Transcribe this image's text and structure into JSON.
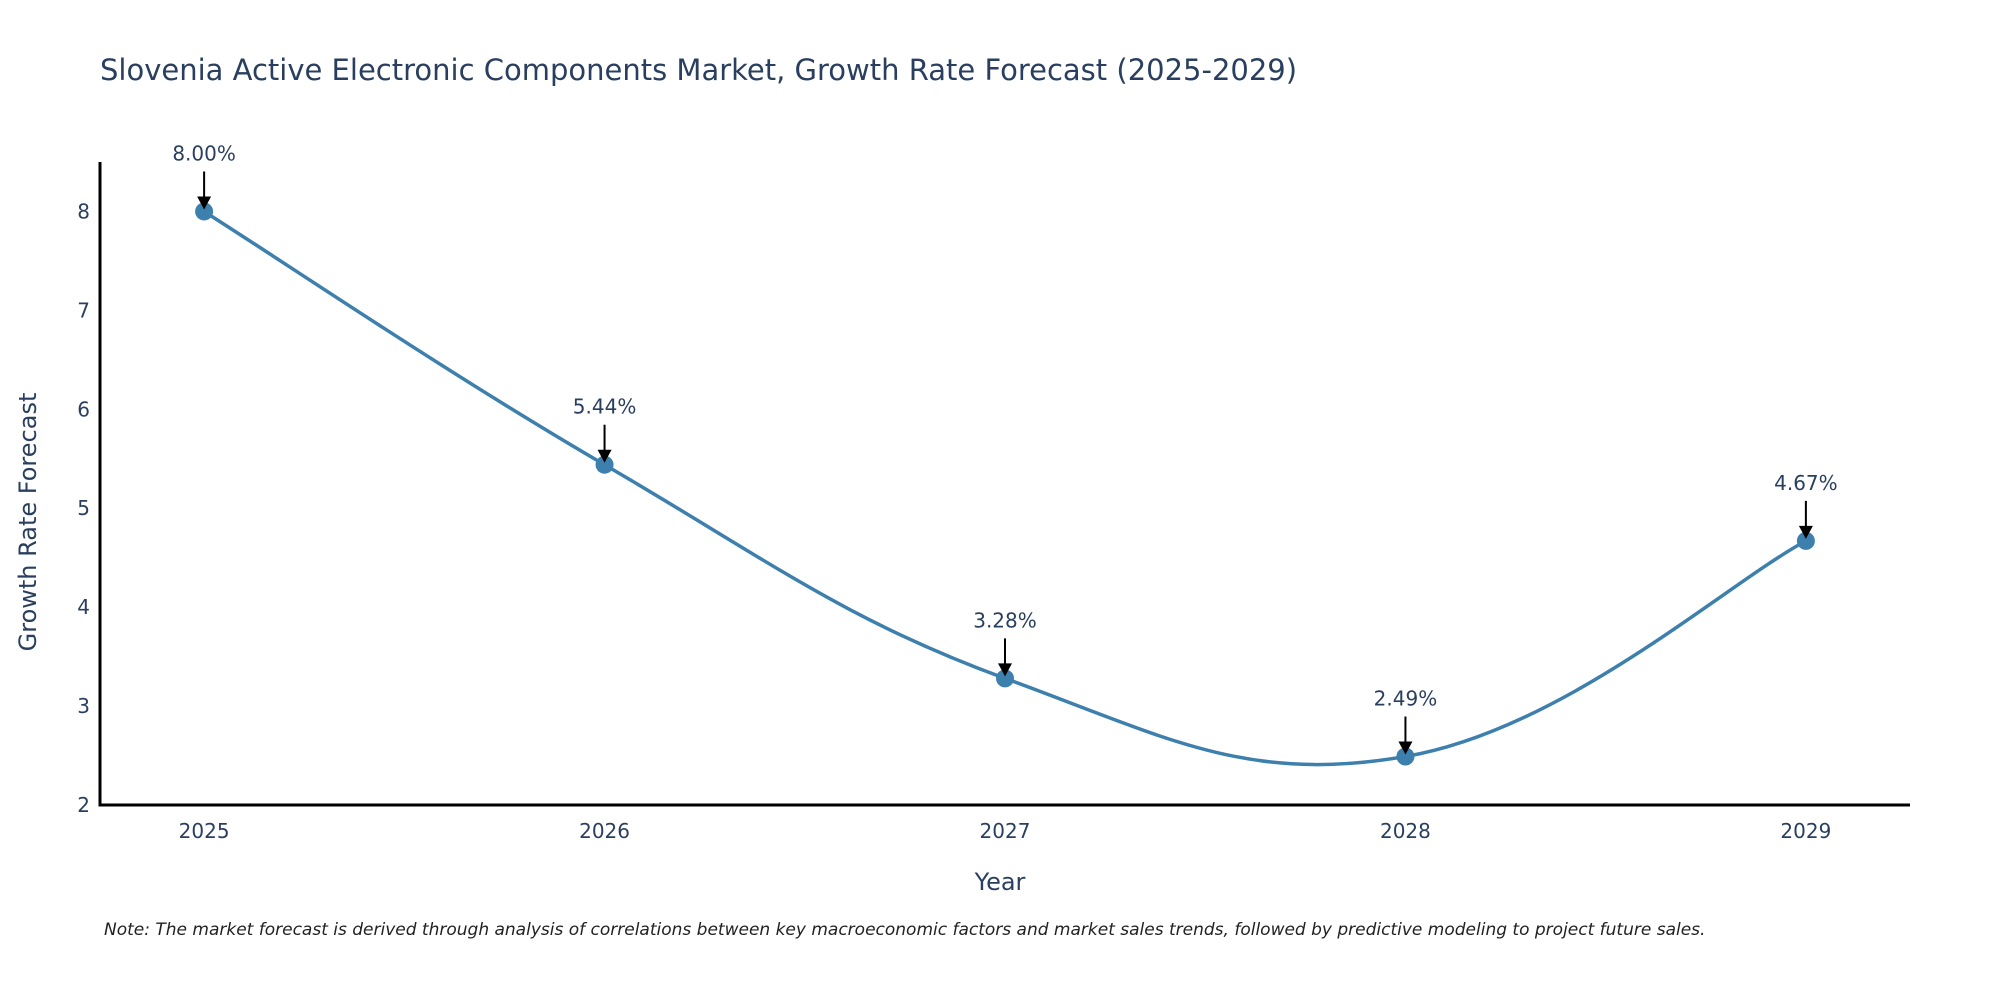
{
  "chart_data": {
    "type": "line",
    "title": "Slovenia Active Electronic Components Market, Growth Rate Forecast (2025-2029)",
    "xlabel": "Year",
    "ylabel": "Growth Rate Forecast",
    "categories": [
      "2025",
      "2026",
      "2027",
      "2028",
      "2029"
    ],
    "series": [
      {
        "name": "Growth Rate Forecast",
        "values": [
          8.0,
          5.44,
          3.28,
          2.49,
          4.67
        ],
        "color": "#3d7fad"
      }
    ],
    "data_labels": [
      "8.00%",
      "5.44%",
      "3.28%",
      "2.49%",
      "4.67%"
    ],
    "y_ticks": [
      2,
      3,
      4,
      5,
      6,
      7,
      8
    ],
    "ylim": [
      2,
      8.5
    ],
    "xlim": [
      -0.26,
      4.26
    ],
    "grid": false,
    "line_shape": "spline",
    "legend": "none",
    "note": "Note: The market forecast is derived through analysis of correlations between key macroeconomic factors and market sales trends, followed by predictive modeling to project future sales."
  }
}
